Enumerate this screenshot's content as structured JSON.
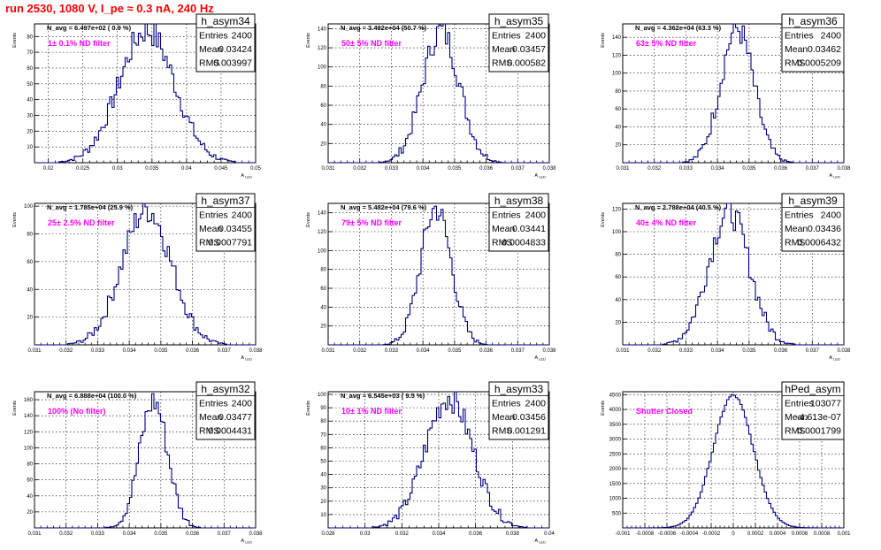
{
  "title": "run 2530,  1080 V, I_pe ≈ 0.3 nA, 240 Hz",
  "stats_labels": {
    "entries": "Entries",
    "mean": "Mean",
    "rms": "RMS"
  },
  "colors": {
    "title": "#ff0000",
    "histogram": "#000080",
    "annotation": "#ff00ff"
  },
  "chart_data": [
    {
      "type": "bar",
      "name": "h_asym34",
      "ylabel": "Events",
      "xlabel": "A_{LED}",
      "n_avg_label": "N_avg = 6.497e+02 ( 0.9 %)",
      "filter_label": "1± 0.1% ND filter",
      "stats": {
        "entries": "2400",
        "mean": "0.03424",
        "rms": "0.003997"
      },
      "xlim": [
        0.018,
        0.05
      ],
      "ylim": [
        0,
        88
      ],
      "xticks": [
        "0.02",
        "0.025",
        "0.03",
        "0.035",
        "0.04",
        "0.045",
        "0.05"
      ],
      "yticks": [
        "10",
        "20",
        "30",
        "40",
        "50",
        "60",
        "70",
        "80"
      ],
      "peak": 84,
      "grid": true
    },
    {
      "type": "bar",
      "name": "h_asym35",
      "ylabel": "Events",
      "xlabel": "A_{LED}",
      "n_avg_label": "N_avg = 3.492e+04 (50.7 %)",
      "filter_label": "50± 5% ND filter",
      "stats": {
        "entries": "2400",
        "mean": "0.03457",
        "rms": "0.000582"
      },
      "xlim": [
        0.031,
        0.038
      ],
      "ylim": [
        0,
        145
      ],
      "xticks": [
        "0.031",
        "0.032",
        "0.033",
        "0.034",
        "0.035",
        "0.036",
        "0.037",
        "0.038"
      ],
      "yticks": [
        "20",
        "40",
        "60",
        "80",
        "100",
        "120",
        "140"
      ],
      "peak": 138,
      "grid": true
    },
    {
      "type": "bar",
      "name": "h_asym36",
      "ylabel": "Events",
      "xlabel": "A_{LED}",
      "n_avg_label": "N_avg = 4.362e+04 (63.3 %)",
      "filter_label": "63± 5% ND filter",
      "stats": {
        "entries": "2400",
        "mean": "0.03462",
        "rms": "0.0005209"
      },
      "xlim": [
        0.031,
        0.038
      ],
      "ylim": [
        0,
        155
      ],
      "xticks": [
        "0.031",
        "0.032",
        "0.033",
        "0.034",
        "0.035",
        "0.036",
        "0.037",
        "0.038"
      ],
      "yticks": [
        "20",
        "40",
        "60",
        "80",
        "100",
        "120",
        "140"
      ],
      "peak": 150,
      "grid": true
    },
    {
      "type": "bar",
      "name": "h_asym37",
      "ylabel": "Events",
      "xlabel": "A_{LED}",
      "n_avg_label": "N_avg = 1.785e+04 (25.9 %)",
      "filter_label": "25± 2.5% ND filter",
      "stats": {
        "entries": "2400",
        "mean": "0.03455",
        "rms": "0.0007791"
      },
      "xlim": [
        0.031,
        0.038
      ],
      "ylim": [
        0,
        102
      ],
      "xticks": [
        "0.031",
        "0.032",
        "0.033",
        "0.034",
        "0.035",
        "0.036",
        "0.037",
        "0.038"
      ],
      "yticks": [
        "20",
        "40",
        "60",
        "80",
        "100"
      ],
      "peak": 98,
      "grid": true
    },
    {
      "type": "bar",
      "name": "h_asym38",
      "ylabel": "Events",
      "xlabel": "A_{LED}",
      "n_avg_label": "N_avg = 5.482e+04 (79.6 %)",
      "filter_label": "79± 5% ND filter",
      "stats": {
        "entries": "2400",
        "mean": "0.03441",
        "rms": "0.0004833"
      },
      "xlim": [
        0.031,
        0.038
      ],
      "ylim": [
        0,
        150
      ],
      "xticks": [
        "0.031",
        "0.032",
        "0.033",
        "0.034",
        "0.035",
        "0.036",
        "0.037",
        "0.038"
      ],
      "yticks": [
        "20",
        "40",
        "60",
        "80",
        "100",
        "120",
        "140"
      ],
      "peak": 145,
      "grid": true
    },
    {
      "type": "bar",
      "name": "h_asym39",
      "ylabel": "Events",
      "xlabel": "A_{LED}",
      "n_avg_label": "N_avg = 2.788e+04 (40.5 %)",
      "filter_label": "40± 4% ND filter",
      "stats": {
        "entries": "2400",
        "mean": "0.03436",
        "rms": "0.0006432"
      },
      "xlim": [
        0.031,
        0.038
      ],
      "ylim": [
        0,
        125
      ],
      "xticks": [
        "0.031",
        "0.032",
        "0.033",
        "0.034",
        "0.035",
        "0.036",
        "0.037",
        "0.038"
      ],
      "yticks": [
        "20",
        "40",
        "60",
        "80",
        "100",
        "120"
      ],
      "peak": 118,
      "grid": true
    },
    {
      "type": "bar",
      "name": "h_asym32",
      "ylabel": "Events",
      "xlabel": "A_{LED}",
      "n_avg_label": "N_avg = 6.888e+04 (100.0 %)",
      "filter_label": "100% (No filter)",
      "stats": {
        "entries": "2400",
        "mean": "0.03477",
        "rms": "0.0004431"
      },
      "xlim": [
        0.031,
        0.038
      ],
      "ylim": [
        0,
        170
      ],
      "xticks": [
        "0.031",
        "0.032",
        "0.033",
        "0.034",
        "0.035",
        "0.036",
        "0.037",
        "0.038"
      ],
      "yticks": [
        "20",
        "40",
        "60",
        "80",
        "100",
        "120",
        "140",
        "160"
      ],
      "peak": 158,
      "grid": true
    },
    {
      "type": "bar",
      "name": "h_asym33",
      "ylabel": "Events",
      "xlabel": "A_{LED}",
      "n_avg_label": "N_avg = 6.545e+03 ( 9.5 %)",
      "filter_label": "10± 1% ND filter",
      "stats": {
        "entries": "2400",
        "mean": "0.03456",
        "rms": "0.001291"
      },
      "xlim": [
        0.028,
        0.04
      ],
      "ylim": [
        0,
        102
      ],
      "xticks": [
        "0.028",
        "0.03",
        "0.032",
        "0.034",
        "0.036",
        "0.038",
        "0.04"
      ],
      "yticks": [
        "10",
        "20",
        "30",
        "40",
        "50",
        "60",
        "70",
        "80",
        "90",
        "100"
      ],
      "peak": 98,
      "grid": true
    },
    {
      "type": "bar",
      "name": "hPed_asym",
      "ylabel": "Events",
      "xlabel": "",
      "n_avg_label": "",
      "filter_label": "Shutter Closed",
      "stats": {
        "entries": "103077",
        "mean": "-4.613e-07",
        "rms": "0.0001799"
      },
      "xlim": [
        -0.001,
        0.001
      ],
      "ylim": [
        0,
        4600
      ],
      "xticks": [
        "-0.001",
        "-0.0008",
        "-0.0006",
        "-0.0004",
        "-0.0002",
        "0",
        "0.0002",
        "0.0004",
        "0.0006",
        "0.0008",
        "0.001"
      ],
      "yticks": [
        "500",
        "1000",
        "1500",
        "2000",
        "2500",
        "3000",
        "3500",
        "4000",
        "4500"
      ],
      "peak": 4480,
      "grid": true
    }
  ]
}
